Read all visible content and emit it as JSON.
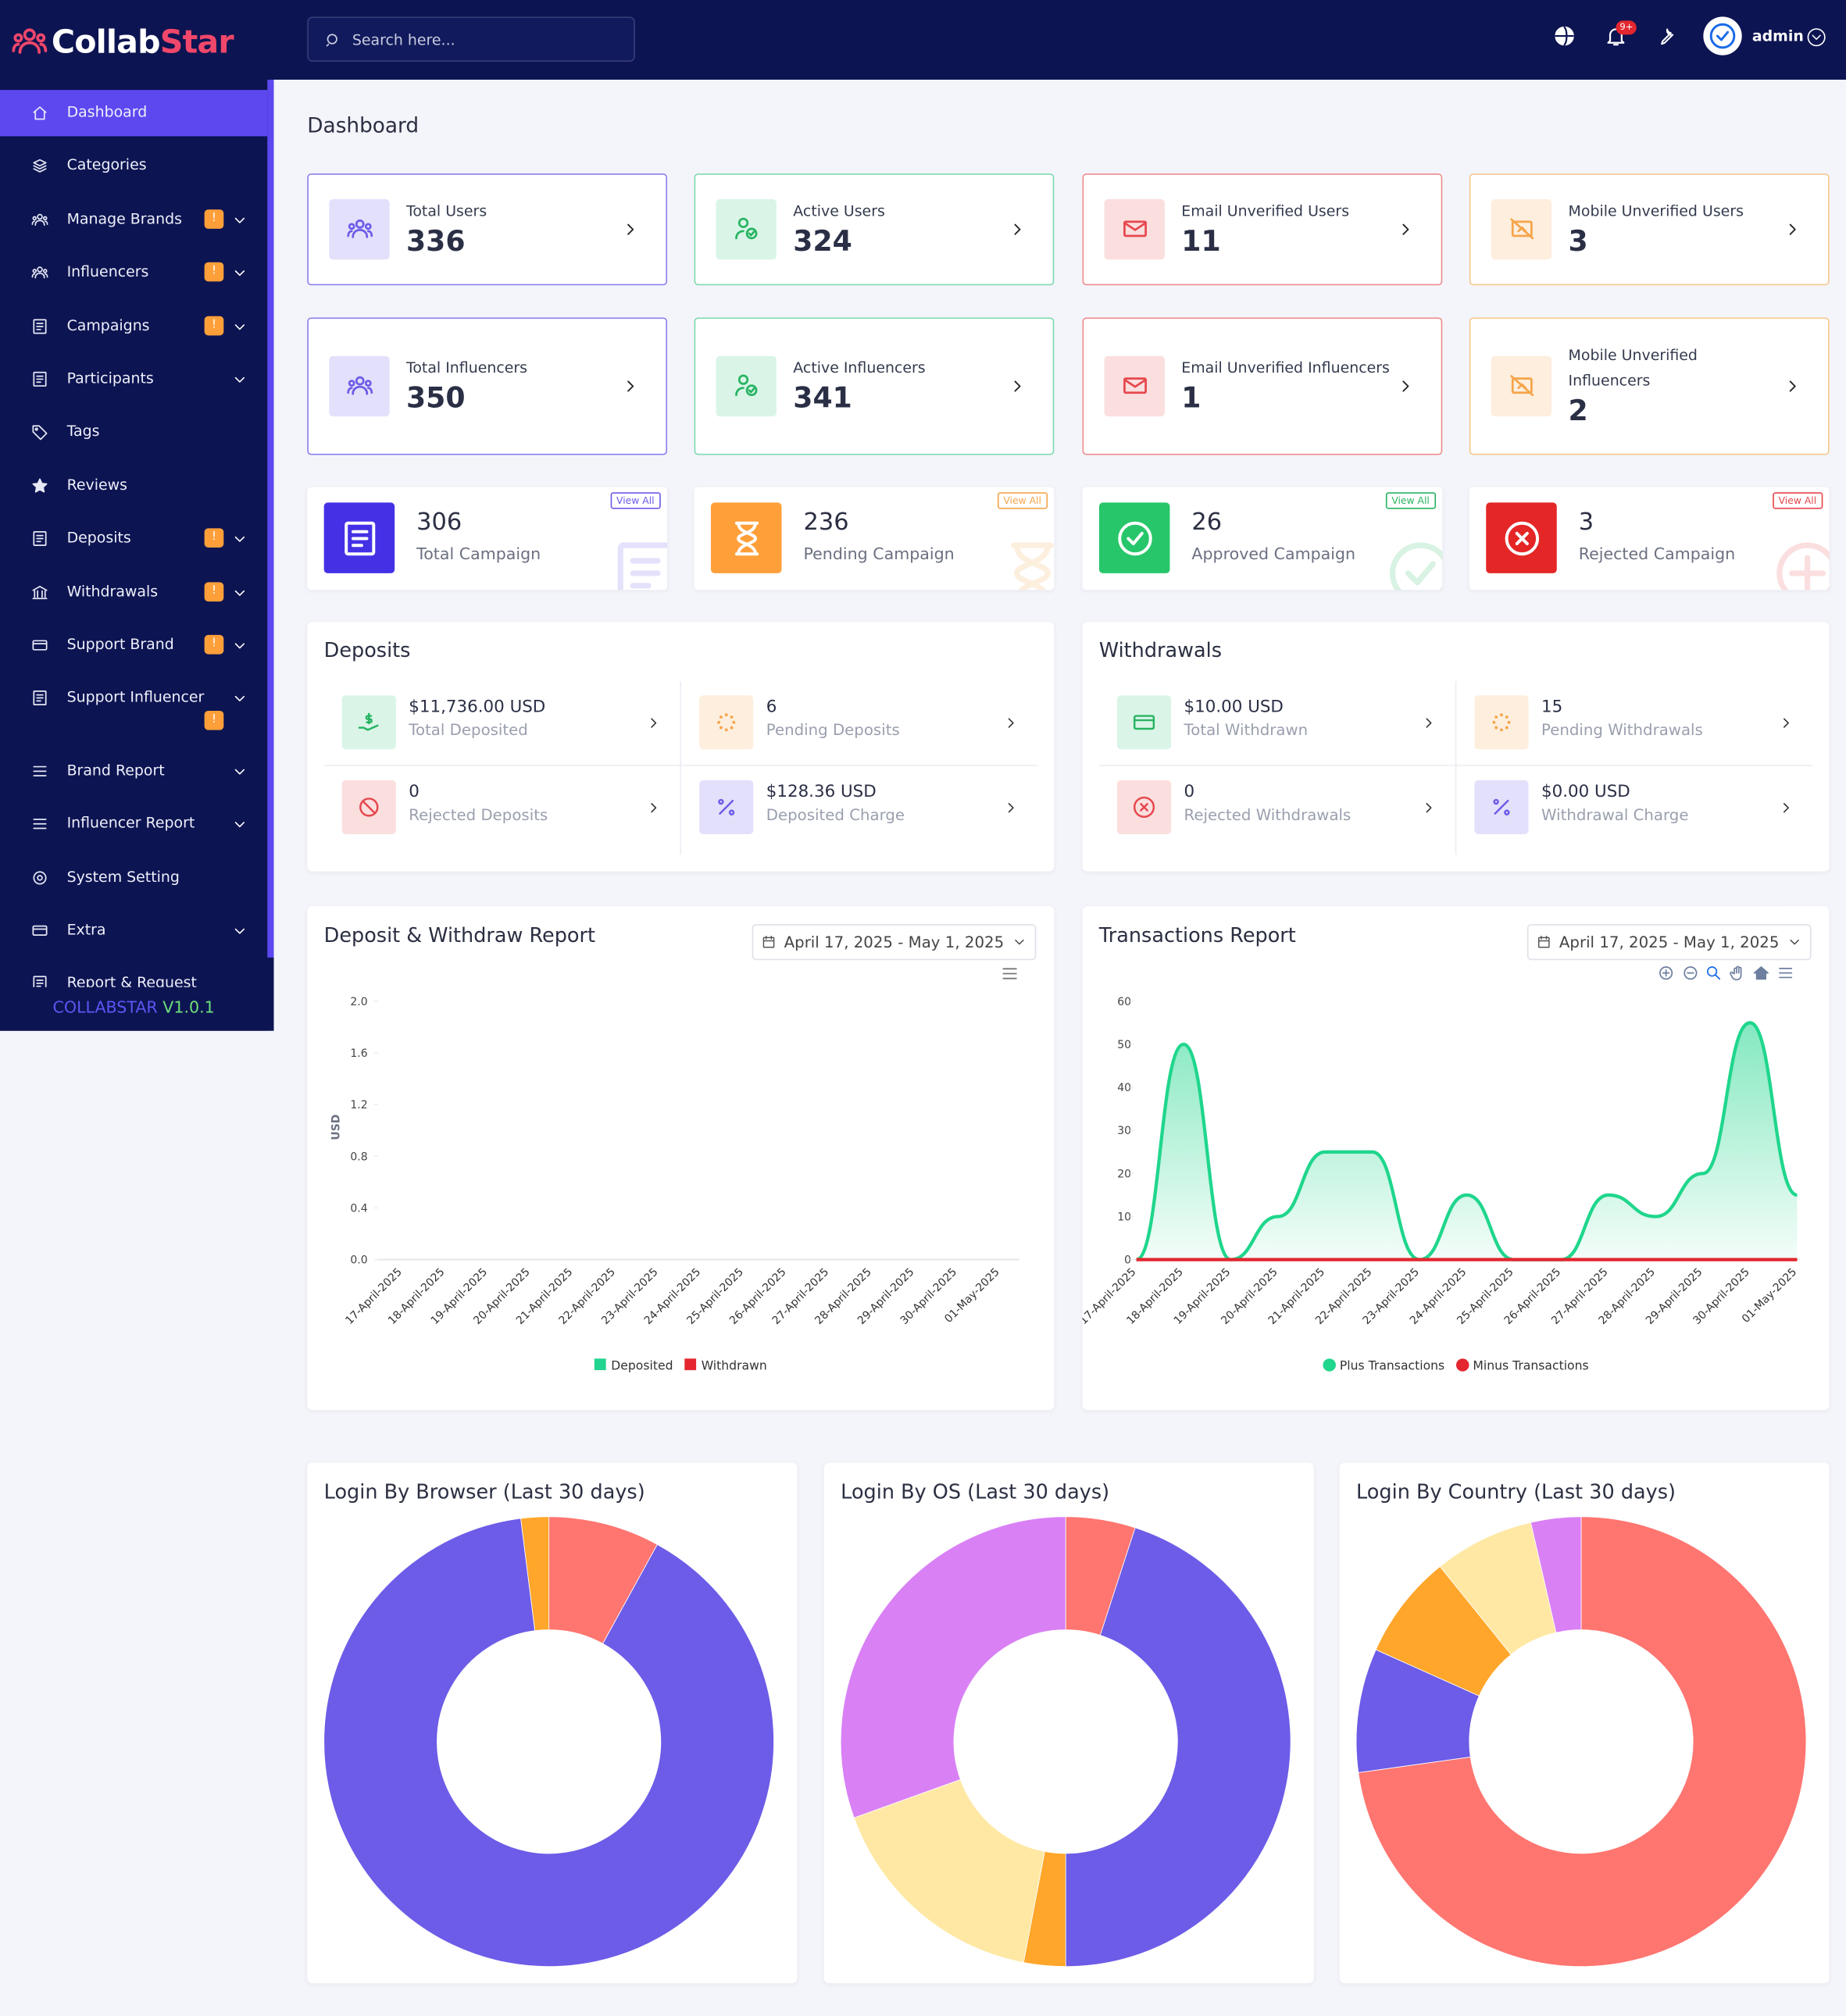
{
  "topbar": {
    "logo": {
      "part1": "Collab",
      "part2": "Star"
    },
    "search_placeholder": "Search here...",
    "notification_badge": "9+",
    "user": "admin"
  },
  "sidebar": {
    "items": [
      {
        "label": "Dashboard",
        "active": true
      },
      {
        "label": "Categories"
      },
      {
        "label": "Manage Brands",
        "badge": "!",
        "submenu": true
      },
      {
        "label": "Influencers",
        "badge": "!",
        "submenu": true
      },
      {
        "label": "Campaigns",
        "badge": "!",
        "submenu": true
      },
      {
        "label": "Participants",
        "submenu": true
      },
      {
        "label": "Tags"
      },
      {
        "label": "Reviews"
      },
      {
        "label": "Deposits",
        "badge": "!",
        "submenu": true
      },
      {
        "label": "Withdrawals",
        "badge": "!",
        "submenu": true
      },
      {
        "label": "Support Brand",
        "badge": "!",
        "submenu": true
      },
      {
        "label": "Support Influencer",
        "badge": "!",
        "submenu": true
      },
      {
        "label": "Brand Report",
        "submenu": true
      },
      {
        "label": "Influencer Report",
        "submenu": true
      },
      {
        "label": "System Setting"
      },
      {
        "label": "Extra",
        "submenu": true
      },
      {
        "label": "Report & Request"
      }
    ],
    "footer": {
      "name": "COLLABSTAR",
      "version": "V1.0.1"
    }
  },
  "page_title": "Dashboard",
  "user_cards": [
    {
      "label": "Total Users",
      "value": 336,
      "tone": "purple"
    },
    {
      "label": "Active Users",
      "value": 324,
      "tone": "green"
    },
    {
      "label": "Email Unverified Users",
      "value": 11,
      "tone": "red"
    },
    {
      "label": "Mobile Unverified Users",
      "value": 3,
      "tone": "orange"
    },
    {
      "label": "Total Influencers",
      "value": 350,
      "tone": "purple"
    },
    {
      "label": "Active Influencers",
      "value": 341,
      "tone": "green"
    },
    {
      "label": "Email Unverified Influencers",
      "value": 1,
      "tone": "red"
    },
    {
      "label": "Mobile Unverified Influencers",
      "value": 2,
      "tone": "orange"
    }
  ],
  "campaign_cards": [
    {
      "value": 306,
      "label": "Total Campaign",
      "link": "View All",
      "tone": "purple"
    },
    {
      "value": 236,
      "label": "Pending Campaign",
      "link": "View All",
      "tone": "orange"
    },
    {
      "value": 26,
      "label": "Approved Campaign",
      "link": "View All",
      "tone": "green"
    },
    {
      "value": 3,
      "label": "Rejected Campaign",
      "link": "View All",
      "tone": "red"
    }
  ],
  "finance_panels": [
    {
      "title": "Deposits",
      "items": [
        {
          "value": "$11,736.00 USD",
          "label": "Total Deposited",
          "tone": "green"
        },
        {
          "value": "6",
          "label": "Pending Deposits",
          "tone": "orange"
        },
        {
          "value": "0",
          "label": "Rejected Deposits",
          "tone": "red"
        },
        {
          "value": "$128.36 USD",
          "label": "Deposited Charge",
          "tone": "purple"
        }
      ]
    },
    {
      "title": "Withdrawals",
      "items": [
        {
          "value": "$10.00 USD",
          "label": "Total Withdrawn",
          "tone": "green"
        },
        {
          "value": "15",
          "label": "Pending Withdrawals",
          "tone": "orange"
        },
        {
          "value": "0",
          "label": "Rejected Withdrawals",
          "tone": "red"
        },
        {
          "value": "$0.00 USD",
          "label": "Withdrawal Charge",
          "tone": "purple"
        }
      ]
    }
  ],
  "charts": [
    {
      "type": "bar",
      "title": "Deposit & Withdraw Report",
      "date_range": "April 17, 2025 - May 1, 2025",
      "ylabel": "USD",
      "categories": [
        "17-April-2025",
        "18-April-2025",
        "19-April-2025",
        "20-April-2025",
        "21-April-2025",
        "22-April-2025",
        "23-April-2025",
        "24-April-2025",
        "25-April-2025",
        "26-April-2025",
        "27-April-2025",
        "28-April-2025",
        "29-April-2025",
        "30-April-2025",
        "01-May-2025"
      ],
      "series": [
        {
          "name": "Deposited",
          "color": "#22d48f",
          "values": [
            0,
            0,
            0,
            0,
            0,
            0,
            0,
            0,
            0,
            0,
            0,
            0,
            0,
            0,
            0
          ]
        },
        {
          "name": "Withdrawn",
          "color": "#e3262f",
          "values": [
            0,
            0,
            0,
            0,
            0,
            0,
            0,
            0,
            0,
            0,
            0,
            0,
            0,
            0,
            0
          ]
        }
      ],
      "ylim": [
        0,
        2
      ],
      "yticks": [
        {
          "value": 0,
          "label": "0.0"
        },
        0.4,
        0.8,
        1.2,
        1.6,
        {
          "value": 2,
          "label": "2.0"
        }
      ]
    },
    {
      "type": "area",
      "title": "Transactions Report",
      "date_range": "April 17, 2025 - May 1, 2025",
      "categories": [
        "17-April-2025",
        "18-April-2025",
        "19-April-2025",
        "20-April-2025",
        "21-April-2025",
        "22-April-2025",
        "23-April-2025",
        "24-April-2025",
        "25-April-2025",
        "26-April-2025",
        "27-April-2025",
        "28-April-2025",
        "29-April-2025",
        "30-April-2025",
        "01-May-2025"
      ],
      "series": [
        {
          "name": "Plus Transactions",
          "color": "#1fd68c",
          "values": [
            0,
            50,
            0,
            10,
            25,
            25,
            0,
            15,
            0,
            0,
            15,
            10,
            20,
            55,
            15
          ]
        },
        {
          "name": "Minus Transactions",
          "color": "#e3262f",
          "values": [
            0,
            0,
            0,
            0,
            0,
            0,
            0,
            0,
            0,
            0,
            0,
            0,
            0,
            0,
            0
          ]
        }
      ],
      "ylim": [
        0,
        60
      ],
      "yticks": [
        0,
        10,
        20,
        30,
        40,
        50,
        60
      ]
    }
  ],
  "pies": [
    {
      "type": "pie",
      "title": "Login By Browser (Last 30 days)",
      "values": [
        8,
        90,
        2
      ],
      "colors": [
        "#ff7570",
        "#6c5ce7",
        "#ffa62b"
      ]
    },
    {
      "type": "pie",
      "title": "Login By OS (Last 30 days)",
      "values": [
        5,
        45,
        3,
        16.5,
        30.5
      ],
      "colors": [
        "#ff7570",
        "#6c5ce7",
        "#ffa62b",
        "#ffe8a3",
        "#d980f5"
      ]
    },
    {
      "type": "pie",
      "title": "Login By Country (Last 30 days)",
      "values": [
        72.8,
        8.9,
        7.5,
        7.2,
        3.6
      ],
      "colors": [
        "#ff7570",
        "#6c5ce7",
        "#ffa62b",
        "#ffe8a3",
        "#d980f5"
      ]
    }
  ]
}
